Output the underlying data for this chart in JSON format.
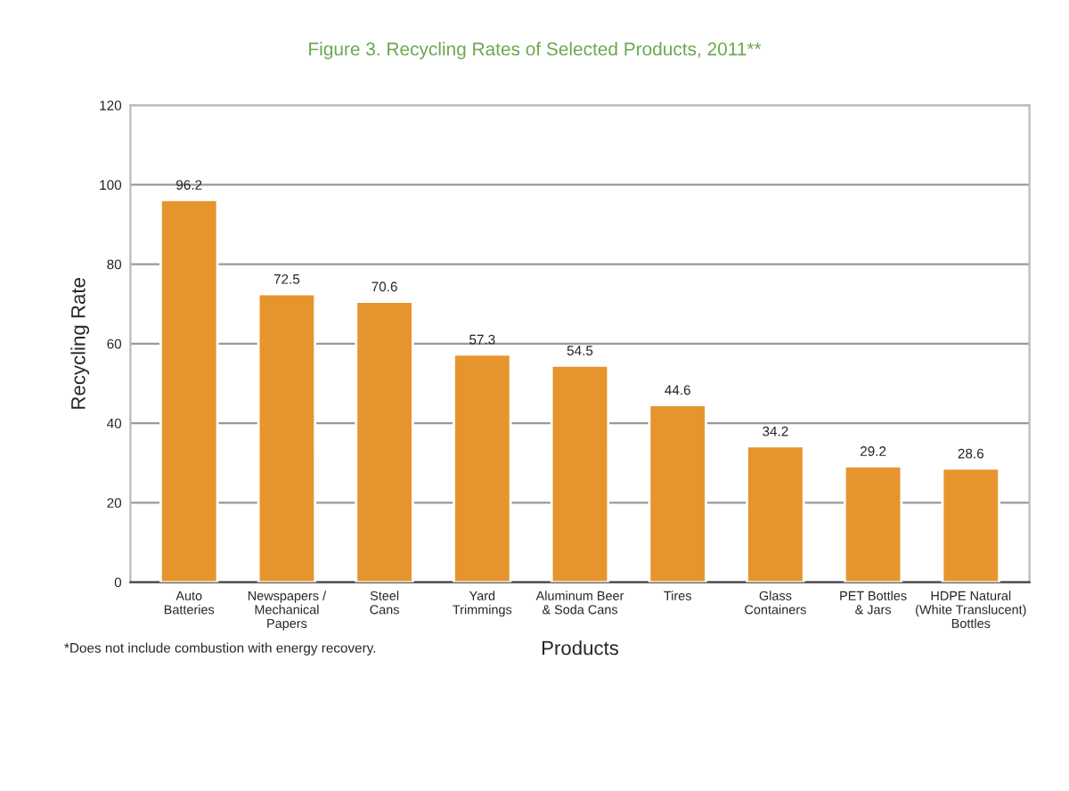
{
  "chart_data": {
    "type": "bar",
    "title": "Figure 3. Recycling Rates of Selected Products, 2011**",
    "xlabel": "Products",
    "ylabel": "Recycling Rate",
    "categories": [
      "Auto\nBatteries",
      "Newspapers /\nMechanical\nPapers",
      "Steel\nCans",
      "Yard\nTrimmings",
      "Aluminum Beer\n& Soda Cans",
      "Tires",
      "Glass\nContainers",
      "PET Bottles\n& Jars",
      "HDPE Natural\n(White Translucent)\nBottles"
    ],
    "values": [
      96.2,
      72.5,
      70.6,
      57.3,
      54.5,
      44.6,
      34.2,
      29.2,
      28.6
    ],
    "color": "#e6952e",
    "ylim": [
      0,
      120
    ],
    "yticks": [
      0,
      20,
      40,
      60,
      80,
      100,
      120
    ],
    "grid": "y",
    "data_labels": true,
    "annotations": [
      "*Does not include combustion with energy recovery."
    ]
  }
}
